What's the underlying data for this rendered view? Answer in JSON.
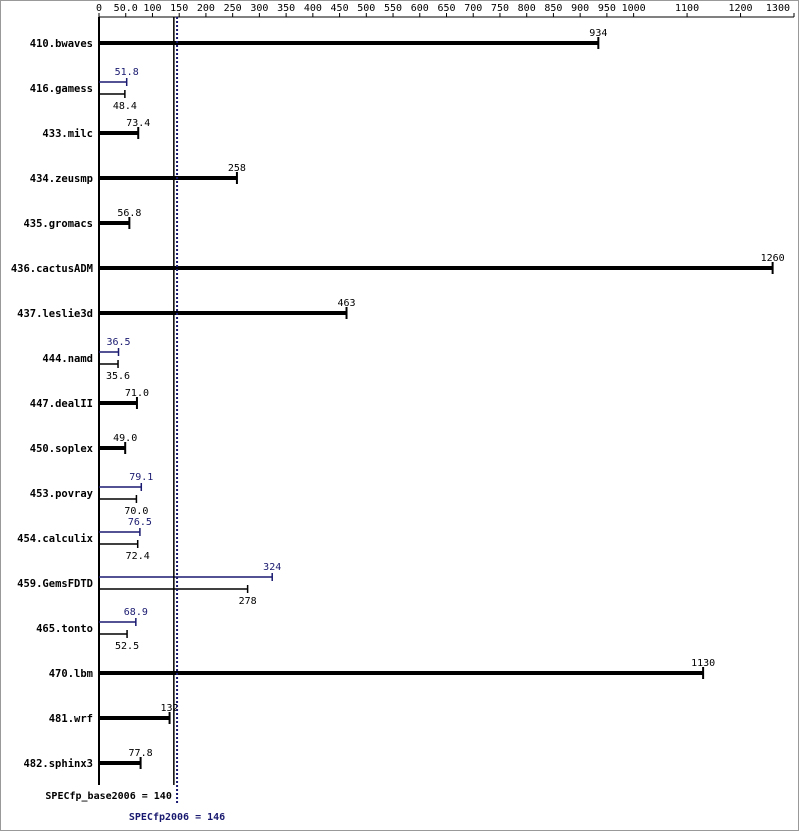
{
  "chart_data": {
    "type": "bar",
    "categories": [
      "410.bwaves",
      "416.gamess",
      "433.milc",
      "434.zeusmp",
      "435.gromacs",
      "436.cactusADM",
      "437.leslie3d",
      "444.namd",
      "447.dealII",
      "450.soplex",
      "453.povray",
      "454.calculix",
      "459.GemsFDTD",
      "465.tonto",
      "470.lbm",
      "481.wrf",
      "482.sphinx3"
    ],
    "series": [
      {
        "color": "#000000",
        "values": [
          934,
          48.4,
          73.4,
          258,
          56.8,
          1260,
          463,
          35.6,
          71.0,
          49.0,
          70.0,
          72.4,
          278,
          52.5,
          1130,
          132,
          77.8
        ],
        "value_labels": [
          "934",
          "48.4",
          "73.4",
          "258",
          "56.8",
          "1260",
          "463",
          "35.6",
          "71.0",
          "49.0",
          "70.0",
          "72.4",
          "278",
          "52.5",
          "1130",
          "132",
          "77.8"
        ]
      },
      {
        "color": "#191970",
        "values": [
          null,
          51.8,
          null,
          null,
          null,
          null,
          null,
          36.5,
          null,
          null,
          79.1,
          76.5,
          324,
          68.9,
          null,
          null,
          null
        ],
        "value_labels": [
          null,
          "51.8",
          null,
          null,
          null,
          null,
          null,
          "36.5",
          null,
          null,
          "79.1",
          "76.5",
          "324",
          "68.9",
          null,
          null,
          null
        ]
      }
    ],
    "xlim": [
      0,
      1300
    ],
    "xticks": [
      0,
      {
        "value": 50,
        "label": "50.0"
      },
      100,
      150,
      200,
      250,
      300,
      350,
      400,
      450,
      500,
      550,
      600,
      650,
      700,
      750,
      800,
      850,
      900,
      950,
      1000,
      1100,
      1200,
      1300
    ],
    "reference_lines": [
      {
        "value": 140,
        "label": "SPECfp_base2006 = 140",
        "color": "#000000"
      },
      {
        "value": 146,
        "label": "SPECfp2006 = 146",
        "color": "#191970"
      }
    ]
  }
}
